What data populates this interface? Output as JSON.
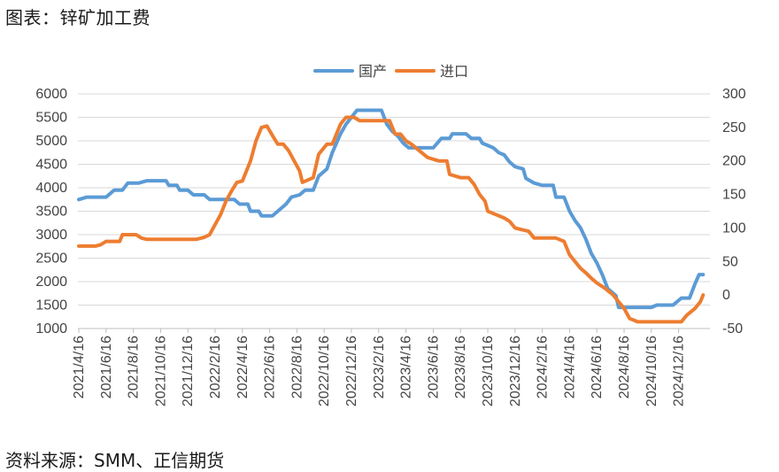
{
  "figure": {
    "title": "图表：锌矿加工费",
    "source": "资料来源：SMM、正信期货"
  },
  "chart_data": {
    "type": "line",
    "legend_position": "top-center",
    "grid": true,
    "x_tick_labels": [
      "2021/4/16",
      "2021/6/16",
      "2021/8/16",
      "2021/10/16",
      "2021/12/16",
      "2022/2/16",
      "2022/4/16",
      "2022/6/16",
      "2022/8/16",
      "2022/10/16",
      "2022/12/16",
      "2023/2/16",
      "2023/4/16",
      "2023/6/16",
      "2023/8/16",
      "2023/10/16",
      "2023/12/16",
      "2024/2/16",
      "2024/4/16",
      "2024/6/16",
      "2024/8/16",
      "2024/10/16",
      "2024/12/16"
    ],
    "ylim_left": [
      1000,
      6000
    ],
    "yticks_left": [
      1000,
      1500,
      2000,
      2500,
      3000,
      3500,
      4000,
      4500,
      5000,
      5500,
      6000
    ],
    "ylim_right": [
      -50,
      300
    ],
    "yticks_right": [
      -50,
      0,
      50,
      100,
      150,
      200,
      250,
      300
    ],
    "series": [
      {
        "name": "国产",
        "axis": "left",
        "color": "#5B9BD5",
        "points": [
          [
            0,
            3750
          ],
          [
            0.3,
            3800
          ],
          [
            0.7,
            3800
          ],
          [
            1.0,
            3800
          ],
          [
            1.3,
            3950
          ],
          [
            1.6,
            3950
          ],
          [
            1.8,
            4100
          ],
          [
            2.2,
            4100
          ],
          [
            2.5,
            4150
          ],
          [
            3.0,
            4150
          ],
          [
            3.2,
            4150
          ],
          [
            3.3,
            4050
          ],
          [
            3.6,
            4050
          ],
          [
            3.7,
            3950
          ],
          [
            4.0,
            3950
          ],
          [
            4.2,
            3850
          ],
          [
            4.6,
            3850
          ],
          [
            4.8,
            3750
          ],
          [
            5.5,
            3750
          ],
          [
            5.7,
            3750
          ],
          [
            5.9,
            3650
          ],
          [
            6.2,
            3650
          ],
          [
            6.3,
            3500
          ],
          [
            6.6,
            3500
          ],
          [
            6.7,
            3400
          ],
          [
            7.1,
            3400
          ],
          [
            7.3,
            3500
          ],
          [
            7.6,
            3650
          ],
          [
            7.8,
            3800
          ],
          [
            8.1,
            3850
          ],
          [
            8.3,
            3950
          ],
          [
            8.6,
            3950
          ],
          [
            8.8,
            4250
          ],
          [
            9.1,
            4400
          ],
          [
            9.3,
            4750
          ],
          [
            9.6,
            5150
          ],
          [
            9.8,
            5350
          ],
          [
            10.0,
            5500
          ],
          [
            10.2,
            5650
          ],
          [
            10.5,
            5650
          ],
          [
            11.1,
            5650
          ],
          [
            11.3,
            5350
          ],
          [
            11.5,
            5200
          ],
          [
            11.7,
            5100
          ],
          [
            11.9,
            4950
          ],
          [
            12.1,
            4850
          ],
          [
            12.3,
            4850
          ],
          [
            13.0,
            4850
          ],
          [
            13.3,
            5050
          ],
          [
            13.6,
            5050
          ],
          [
            13.7,
            5150
          ],
          [
            14.2,
            5150
          ],
          [
            14.4,
            5050
          ],
          [
            14.7,
            5050
          ],
          [
            14.8,
            4950
          ],
          [
            15.2,
            4850
          ],
          [
            15.4,
            4750
          ],
          [
            15.6,
            4700
          ],
          [
            15.8,
            4550
          ],
          [
            16.0,
            4450
          ],
          [
            16.3,
            4400
          ],
          [
            16.4,
            4200
          ],
          [
            16.7,
            4100
          ],
          [
            17.0,
            4050
          ],
          [
            17.4,
            4050
          ],
          [
            17.5,
            3800
          ],
          [
            17.8,
            3800
          ],
          [
            18.0,
            3500
          ],
          [
            18.2,
            3300
          ],
          [
            18.4,
            3150
          ],
          [
            18.6,
            2900
          ],
          [
            18.8,
            2600
          ],
          [
            19.0,
            2400
          ],
          [
            19.2,
            2150
          ],
          [
            19.4,
            1850
          ],
          [
            19.7,
            1700
          ],
          [
            19.8,
            1450
          ],
          [
            20.4,
            1450
          ],
          [
            21.0,
            1450
          ],
          [
            21.2,
            1500
          ],
          [
            21.8,
            1500
          ],
          [
            22.1,
            1650
          ],
          [
            22.4,
            1650
          ],
          [
            22.6,
            1950
          ],
          [
            22.75,
            2150
          ],
          [
            22.9,
            2150
          ]
        ]
      },
      {
        "name": "进口",
        "axis": "right",
        "color": "#ED7D31",
        "points": [
          [
            0,
            73
          ],
          [
            0.6,
            73
          ],
          [
            0.8,
            75
          ],
          [
            1.0,
            80
          ],
          [
            1.5,
            80
          ],
          [
            1.6,
            90
          ],
          [
            2.1,
            90
          ],
          [
            2.3,
            85
          ],
          [
            2.5,
            83
          ],
          [
            3.0,
            83
          ],
          [
            4.3,
            83
          ],
          [
            4.6,
            86
          ],
          [
            4.8,
            90
          ],
          [
            5.0,
            105
          ],
          [
            5.2,
            120
          ],
          [
            5.4,
            140
          ],
          [
            5.6,
            155
          ],
          [
            5.8,
            168
          ],
          [
            6.0,
            170
          ],
          [
            6.3,
            200
          ],
          [
            6.5,
            230
          ],
          [
            6.7,
            250
          ],
          [
            6.9,
            252
          ],
          [
            7.1,
            238
          ],
          [
            7.3,
            225
          ],
          [
            7.5,
            225
          ],
          [
            7.7,
            215
          ],
          [
            7.9,
            200
          ],
          [
            8.1,
            185
          ],
          [
            8.2,
            168
          ],
          [
            8.6,
            175
          ],
          [
            8.8,
            210
          ],
          [
            9.1,
            225
          ],
          [
            9.3,
            225
          ],
          [
            9.6,
            255
          ],
          [
            9.8,
            265
          ],
          [
            10.1,
            265
          ],
          [
            10.3,
            260
          ],
          [
            11.0,
            260
          ],
          [
            11.4,
            260
          ],
          [
            11.6,
            240
          ],
          [
            11.8,
            240
          ],
          [
            12.0,
            230
          ],
          [
            12.2,
            225
          ],
          [
            12.5,
            215
          ],
          [
            12.8,
            205
          ],
          [
            13.2,
            200
          ],
          [
            13.5,
            200
          ],
          [
            13.6,
            180
          ],
          [
            14.0,
            175
          ],
          [
            14.3,
            175
          ],
          [
            14.5,
            165
          ],
          [
            14.7,
            150
          ],
          [
            14.9,
            140
          ],
          [
            15.0,
            125
          ],
          [
            15.3,
            120
          ],
          [
            15.6,
            115
          ],
          [
            15.8,
            110
          ],
          [
            16.0,
            100
          ],
          [
            16.5,
            95
          ],
          [
            16.7,
            85
          ],
          [
            17.0,
            85
          ],
          [
            17.5,
            85
          ],
          [
            17.8,
            80
          ],
          [
            18.0,
            60
          ],
          [
            18.2,
            50
          ],
          [
            18.4,
            40
          ],
          [
            18.6,
            33
          ],
          [
            18.8,
            25
          ],
          [
            19.0,
            18
          ],
          [
            19.3,
            10
          ],
          [
            19.6,
            0
          ],
          [
            19.8,
            -10
          ],
          [
            20.0,
            -20
          ],
          [
            20.2,
            -35
          ],
          [
            20.5,
            -40
          ],
          [
            21.5,
            -40
          ],
          [
            22.1,
            -40
          ],
          [
            22.3,
            -30
          ],
          [
            22.6,
            -20
          ],
          [
            22.8,
            -10
          ],
          [
            22.9,
            0
          ]
        ]
      }
    ]
  }
}
